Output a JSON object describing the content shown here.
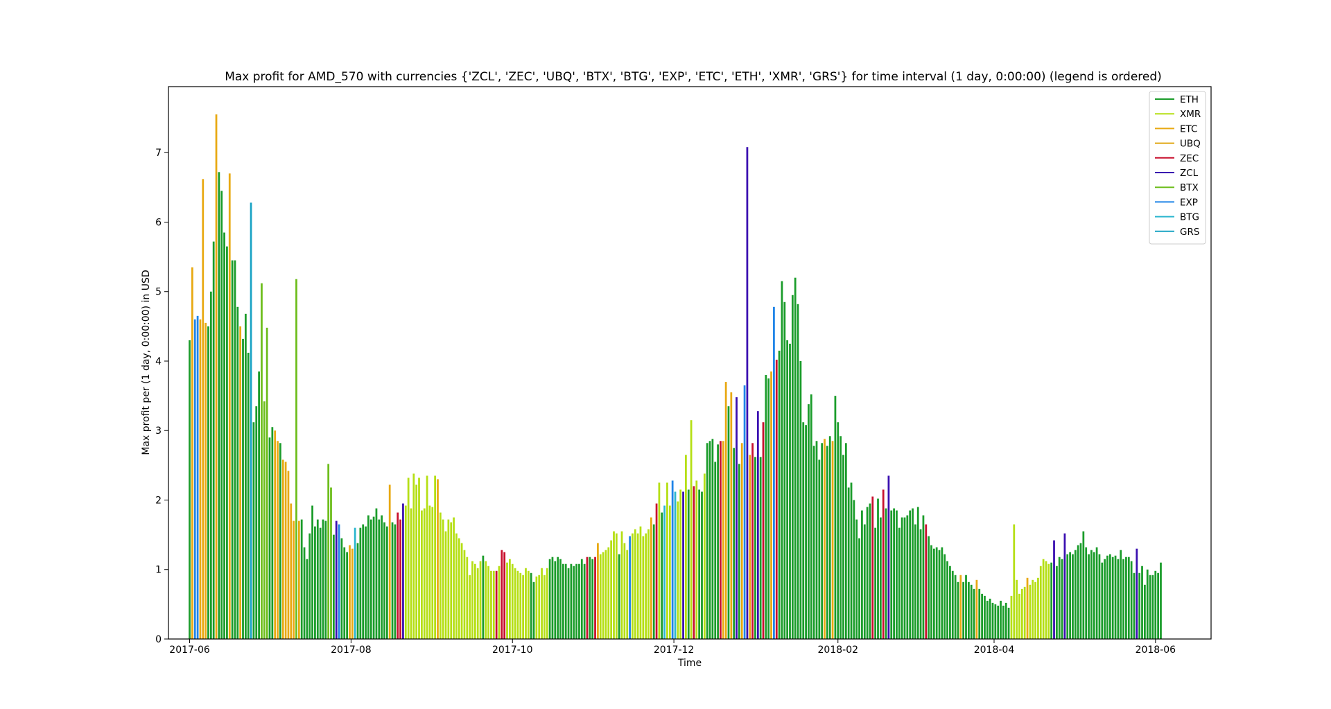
{
  "chart_data": {
    "type": "bar",
    "title": "Max profit for AMD_570 with currencies {'ZCL', 'ZEC', 'UBQ', 'BTX', 'BTG', 'EXP', 'ETC', 'ETH', 'XMR', 'GRS'} for time interval (1 day, 0:00:00) (legend is ordered)",
    "xlabel": "Time",
    "ylabel": "Max profit per (1 day, 0:00:00) in USD",
    "x_start": "2017-06-01",
    "x_end": "2018-06-03",
    "xlim": [
      "2017-05-24",
      "2018-06-22"
    ],
    "ylim": [
      0,
      7.95
    ],
    "x_ticks": [
      "2017-06",
      "2017-08",
      "2017-10",
      "2017-12",
      "2018-02",
      "2018-04",
      "2018-06"
    ],
    "y_ticks": [
      0,
      1,
      2,
      3,
      4,
      5,
      6,
      7
    ],
    "grid": false,
    "legend_position": "top-right",
    "legend": [
      {
        "name": "ETH",
        "color": "#1a9c2a"
      },
      {
        "name": "XMR",
        "color": "#b5df14"
      },
      {
        "name": "ETC",
        "color": "#e8a912"
      },
      {
        "name": "UBQ",
        "color": "#e0a612"
      },
      {
        "name": "ZEC",
        "color": "#c8102e"
      },
      {
        "name": "ZCL",
        "color": "#3a0fb0"
      },
      {
        "name": "BTX",
        "color": "#6dbd1c"
      },
      {
        "name": "EXP",
        "color": "#1f84e8"
      },
      {
        "name": "BTG",
        "color": "#2cb6cf"
      },
      {
        "name": "GRS",
        "color": "#1aa3c4"
      }
    ],
    "segments": [
      {
        "c": "ETH",
        "v": [
          4.3
        ]
      },
      {
        "c": "ETC",
        "v": [
          5.35
        ]
      },
      {
        "c": "EXP",
        "v": [
          4.6,
          4.65
        ]
      },
      {
        "c": "ETC",
        "v": [
          4.6,
          6.62,
          4.55
        ]
      },
      {
        "c": "ETH",
        "v": [
          4.5,
          5.0,
          5.72
        ]
      },
      {
        "c": "ETC",
        "v": [
          7.55
        ]
      },
      {
        "c": "ETH",
        "v": [
          6.72,
          6.45,
          5.85,
          5.65
        ]
      },
      {
        "c": "ETC",
        "v": [
          6.7
        ]
      },
      {
        "c": "ETH",
        "v": [
          5.45,
          5.45,
          4.78
        ]
      },
      {
        "c": "ETC",
        "v": [
          4.5
        ]
      },
      {
        "c": "ETH",
        "v": [
          4.32,
          4.68,
          4.12
        ]
      },
      {
        "c": "GRS",
        "v": [
          6.28
        ]
      },
      {
        "c": "ETH",
        "v": [
          3.12,
          3.35,
          3.85
        ]
      },
      {
        "c": "BTX",
        "v": [
          5.12,
          3.42,
          4.48
        ]
      },
      {
        "c": "ETH",
        "v": [
          2.9,
          3.05
        ]
      },
      {
        "c": "ETC",
        "v": [
          3.0,
          2.85
        ]
      },
      {
        "c": "ETH",
        "v": [
          2.82
        ]
      },
      {
        "c": "ETC",
        "v": [
          2.58,
          2.55,
          2.42,
          1.95,
          1.7
        ]
      },
      {
        "c": "BTX",
        "v": [
          5.18
        ]
      },
      {
        "c": "ETC",
        "v": [
          1.7
        ]
      },
      {
        "c": "ETH",
        "v": [
          1.72,
          1.32,
          1.15,
          1.52,
          1.92,
          1.62,
          1.72,
          1.6,
          1.72,
          1.7
        ]
      },
      {
        "c": "BTX",
        "v": [
          2.52,
          2.18
        ]
      },
      {
        "c": "ETH",
        "v": [
          1.5
        ]
      },
      {
        "c": "ZCL",
        "v": [
          1.7
        ]
      },
      {
        "c": "EXP",
        "v": [
          1.65
        ]
      },
      {
        "c": "ETH",
        "v": [
          1.45,
          1.32,
          1.25
        ]
      },
      {
        "c": "ETC",
        "v": [
          1.35,
          1.3
        ]
      },
      {
        "c": "BTG",
        "v": [
          1.6
        ]
      },
      {
        "c": "ETH",
        "v": [
          1.38,
          1.6,
          1.65,
          1.62,
          1.78,
          1.72,
          1.76,
          1.88,
          1.72,
          1.78,
          1.68,
          1.62
        ]
      },
      {
        "c": "ETC",
        "v": [
          2.22
        ]
      },
      {
        "c": "ETH",
        "v": [
          1.68,
          1.65
        ]
      },
      {
        "c": "ZEC",
        "v": [
          1.82,
          1.72
        ]
      },
      {
        "c": "ZCL",
        "v": [
          1.95
        ]
      },
      {
        "c": "XMR",
        "v": [
          1.92,
          2.32,
          1.88,
          2.38,
          2.22,
          2.32,
          1.85,
          1.88,
          2.35,
          1.92,
          1.9,
          2.35
        ]
      },
      {
        "c": "ETC",
        "v": [
          2.3
        ]
      },
      {
        "c": "XMR",
        "v": [
          1.82,
          1.72,
          1.55,
          1.72,
          1.68,
          1.75,
          1.52,
          1.45,
          1.38,
          1.28,
          1.18,
          0.92,
          1.12,
          1.08,
          1.02,
          1.12
        ]
      },
      {
        "c": "ETH",
        "v": [
          1.2
        ]
      },
      {
        "c": "XMR",
        "v": [
          1.12,
          1.05,
          0.98,
          0.98
        ]
      },
      {
        "c": "ZEC",
        "v": [
          0.98
        ]
      },
      {
        "c": "XMR",
        "v": [
          1.05
        ]
      },
      {
        "c": "ZEC",
        "v": [
          1.28,
          1.25
        ]
      },
      {
        "c": "XMR",
        "v": [
          1.1,
          1.15,
          1.08,
          1.02,
          0.98,
          0.95,
          0.92,
          1.02,
          0.98
        ]
      },
      {
        "c": "ETH",
        "v": [
          0.95,
          0.82
        ]
      },
      {
        "c": "XMR",
        "v": [
          0.9,
          0.92,
          1.02,
          0.92,
          1.02
        ]
      },
      {
        "c": "ETH",
        "v": [
          1.15,
          1.18,
          1.12,
          1.18,
          1.15,
          1.08,
          1.08,
          1.02,
          1.08,
          1.05,
          1.08,
          1.08,
          1.15,
          1.08
        ]
      },
      {
        "c": "ZEC",
        "v": [
          1.18
        ]
      },
      {
        "c": "ETH",
        "v": [
          1.18,
          1.15
        ]
      },
      {
        "c": "ZEC",
        "v": [
          1.18
        ]
      },
      {
        "c": "ETC",
        "v": [
          1.38
        ]
      },
      {
        "c": "XMR",
        "v": [
          1.22,
          1.25,
          1.28,
          1.32,
          1.42,
          1.55,
          1.52
        ]
      },
      {
        "c": "ETH",
        "v": [
          1.22
        ]
      },
      {
        "c": "XMR",
        "v": [
          1.55,
          1.38,
          1.28
        ]
      },
      {
        "c": "EXP",
        "v": [
          1.48
        ]
      },
      {
        "c": "XMR",
        "v": [
          1.52,
          1.58,
          1.52,
          1.62,
          1.48,
          1.52,
          1.58
        ]
      },
      {
        "c": "ETC",
        "v": [
          1.75
        ]
      },
      {
        "c": "ETH",
        "v": [
          1.65
        ]
      },
      {
        "c": "ZEC",
        "v": [
          1.95
        ]
      },
      {
        "c": "XMR",
        "v": [
          2.25
        ]
      },
      {
        "c": "ETH",
        "v": [
          1.82
        ]
      },
      {
        "c": "BTG",
        "v": [
          1.92
        ]
      },
      {
        "c": "XMR",
        "v": [
          2.25,
          1.92
        ]
      },
      {
        "c": "EXP",
        "v": [
          2.28
        ]
      },
      {
        "c": "BTG",
        "v": [
          2.12
        ]
      },
      {
        "c": "XMR",
        "v": [
          1.98,
          2.15
        ]
      },
      {
        "c": "ZCL",
        "v": [
          2.12
        ]
      },
      {
        "c": "XMR",
        "v": [
          2.65
        ]
      },
      {
        "c": "ETH",
        "v": [
          2.15
        ]
      },
      {
        "c": "XMR",
        "v": [
          3.15
        ]
      },
      {
        "c": "ZEC",
        "v": [
          2.2
        ]
      },
      {
        "c": "XMR",
        "v": [
          2.28
        ]
      },
      {
        "c": "ETH",
        "v": [
          2.15,
          2.12
        ]
      },
      {
        "c": "XMR",
        "v": [
          2.38
        ]
      },
      {
        "c": "ETH",
        "v": [
          2.82,
          2.85,
          2.88,
          2.55,
          2.8
        ]
      },
      {
        "c": "ZEC",
        "v": [
          2.85
        ]
      },
      {
        "c": "ETC",
        "v": [
          2.85,
          3.7
        ]
      },
      {
        "c": "ETH",
        "v": [
          3.35
        ]
      },
      {
        "c": "ETC",
        "v": [
          3.55
        ]
      },
      {
        "c": "ETH",
        "v": [
          2.75
        ]
      },
      {
        "c": "ZCL",
        "v": [
          3.48
        ]
      },
      {
        "c": "ETH",
        "v": [
          2.52
        ]
      },
      {
        "c": "ETC",
        "v": [
          2.82
        ]
      },
      {
        "c": "EXP",
        "v": [
          3.65
        ]
      },
      {
        "c": "ZCL",
        "v": [
          7.08
        ]
      },
      {
        "c": "ETC",
        "v": [
          2.65
        ]
      },
      {
        "c": "ZEC",
        "v": [
          2.82
        ]
      },
      {
        "c": "ETH",
        "v": [
          2.62
        ]
      },
      {
        "c": "ZCL",
        "v": [
          3.28
        ]
      },
      {
        "c": "ETH",
        "v": [
          2.62
        ]
      },
      {
        "c": "ZEC",
        "v": [
          3.12
        ]
      },
      {
        "c": "ETH",
        "v": [
          3.8,
          3.75
        ]
      },
      {
        "c": "ETC",
        "v": [
          3.85
        ]
      },
      {
        "c": "EXP",
        "v": [
          4.78
        ]
      },
      {
        "c": "ZEC",
        "v": [
          4.02
        ]
      },
      {
        "c": "ETH",
        "v": [
          4.15,
          5.15,
          4.85,
          4.3,
          4.25,
          4.95,
          5.2,
          4.82,
          4.0,
          3.12,
          3.08,
          3.38,
          3.52,
          2.78,
          2.85,
          2.58,
          2.82
        ]
      },
      {
        "c": "ETC",
        "v": [
          2.88
        ]
      },
      {
        "c": "ETH",
        "v": [
          2.78,
          2.92
        ]
      },
      {
        "c": "ETC",
        "v": [
          2.85
        ]
      },
      {
        "c": "ETH",
        "v": [
          3.5,
          3.12,
          2.92,
          2.65,
          2.82,
          2.18,
          2.25,
          2.0,
          1.72,
          1.45,
          1.85,
          1.65,
          1.9,
          1.95
        ]
      },
      {
        "c": "ZEC",
        "v": [
          2.05
        ]
      },
      {
        "c": "ETH",
        "v": [
          1.6,
          2.02,
          1.75
        ]
      },
      {
        "c": "ZEC",
        "v": [
          2.15
        ]
      },
      {
        "c": "ETH",
        "v": [
          1.88
        ]
      },
      {
        "c": "ZCL",
        "v": [
          2.35
        ]
      },
      {
        "c": "ETH",
        "v": [
          1.85,
          1.88,
          1.85,
          1.6,
          1.75,
          1.75,
          1.78,
          1.85,
          1.88,
          1.65,
          1.9,
          1.58,
          1.78
        ]
      },
      {
        "c": "ZEC",
        "v": [
          1.65
        ]
      },
      {
        "c": "ETH",
        "v": [
          1.48,
          1.35,
          1.3,
          1.32,
          1.28,
          1.32,
          1.22,
          1.12,
          1.05,
          0.98,
          0.92,
          0.82
        ]
      },
      {
        "c": "ETC",
        "v": [
          0.92
        ]
      },
      {
        "c": "ETH",
        "v": [
          0.82,
          0.92,
          0.82,
          0.78,
          0.72
        ]
      },
      {
        "c": "ETC",
        "v": [
          0.85
        ]
      },
      {
        "c": "ETH",
        "v": [
          0.72,
          0.65,
          0.62,
          0.55,
          0.58,
          0.52,
          0.5,
          0.48,
          0.55,
          0.48,
          0.52,
          0.45
        ]
      },
      {
        "c": "XMR",
        "v": [
          0.62,
          1.65,
          0.85,
          0.65,
          0.72,
          0.75
        ]
      },
      {
        "c": "ETC",
        "v": [
          0.88
        ]
      },
      {
        "c": "XMR",
        "v": [
          0.78,
          0.85,
          0.82,
          0.88,
          1.05,
          1.15,
          1.12,
          1.08
        ]
      },
      {
        "c": "ETH",
        "v": [
          1.1
        ]
      },
      {
        "c": "ZCL",
        "v": [
          1.42
        ]
      },
      {
        "c": "ETH",
        "v": [
          1.05,
          1.18,
          1.15
        ]
      },
      {
        "c": "ZCL",
        "v": [
          1.52
        ]
      },
      {
        "c": "ETH",
        "v": [
          1.22,
          1.25,
          1.22,
          1.28,
          1.35,
          1.38,
          1.55,
          1.32,
          1.22,
          1.28,
          1.25,
          1.32,
          1.22,
          1.1,
          1.15,
          1.2,
          1.22,
          1.18,
          1.2,
          1.15,
          1.28,
          1.15,
          1.18,
          1.18,
          1.12,
          0.95
        ]
      },
      {
        "c": "ZCL",
        "v": [
          1.3
        ]
      },
      {
        "c": "ETH",
        "v": [
          0.95,
          1.05,
          0.78,
          1.0,
          0.92,
          0.92,
          0.98,
          0.95,
          1.1
        ]
      }
    ]
  }
}
